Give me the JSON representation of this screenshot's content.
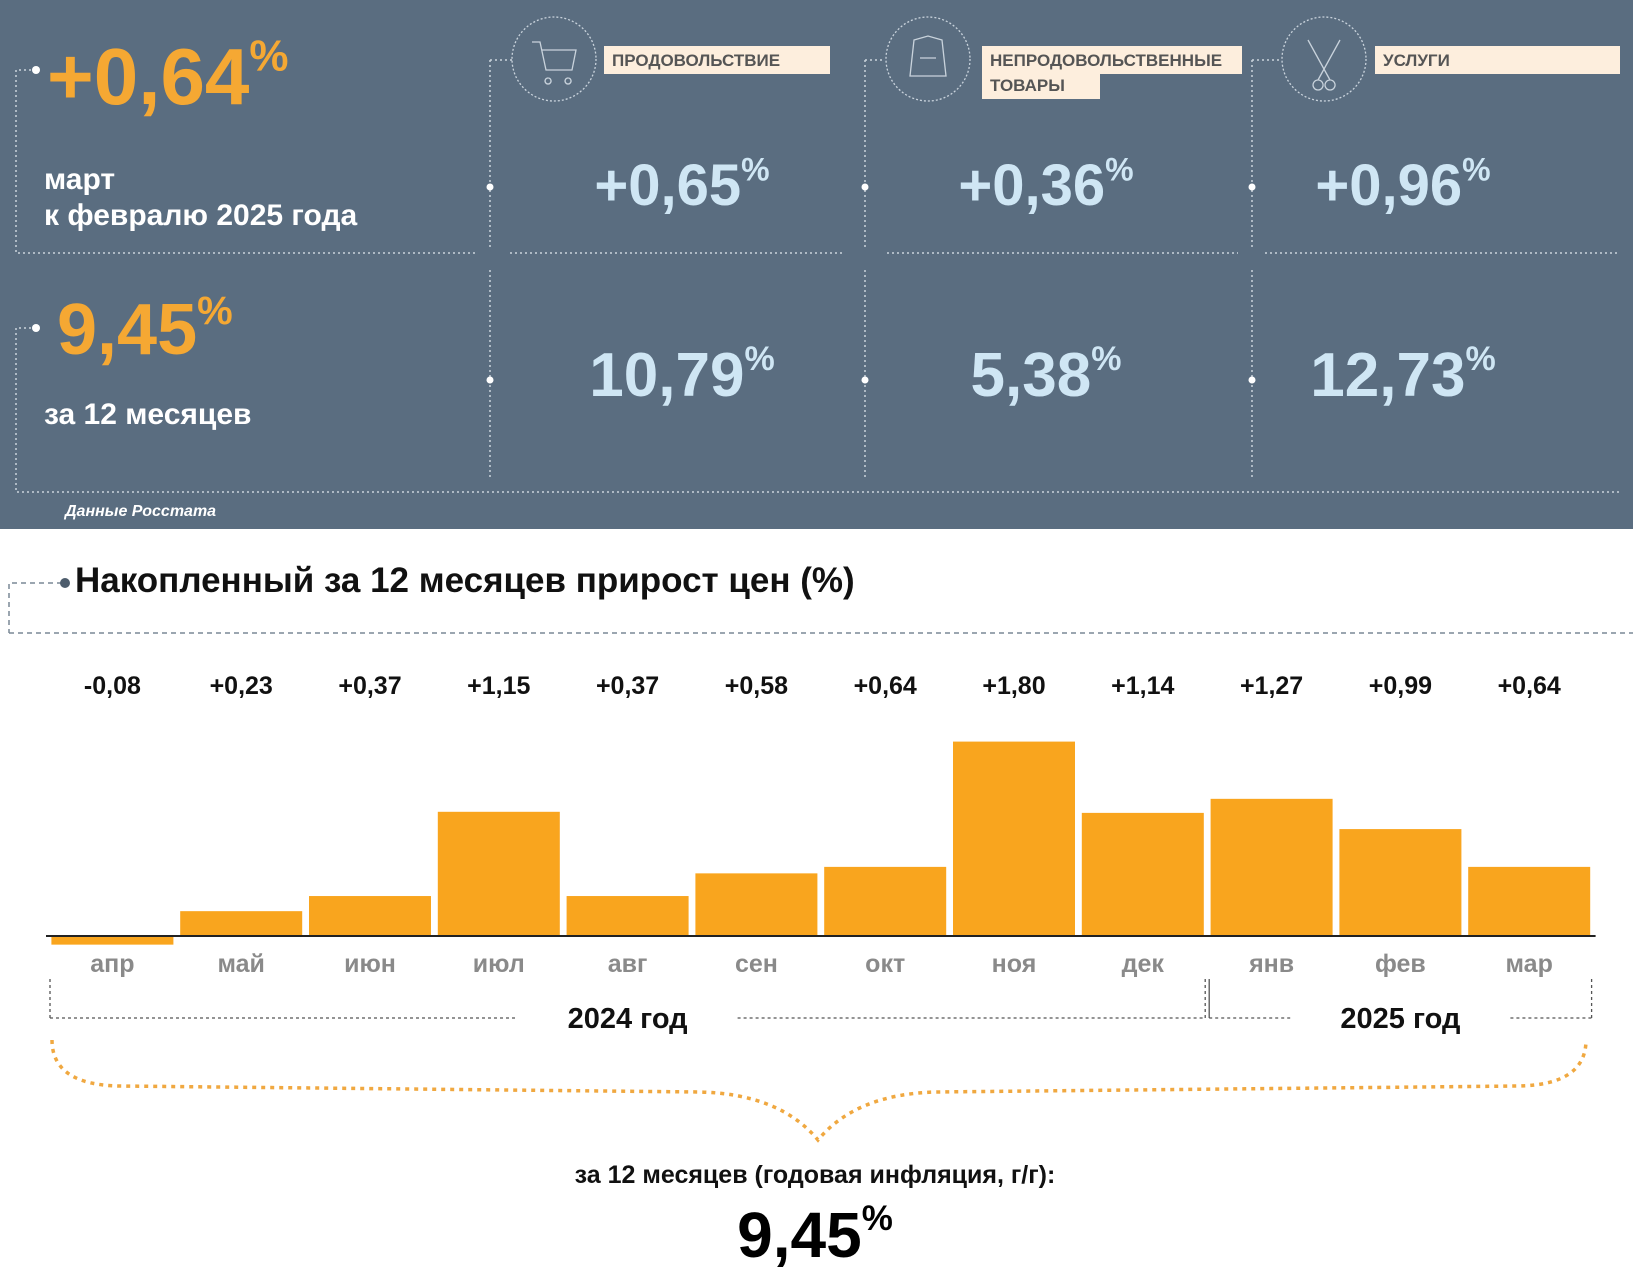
{
  "summary": {
    "monthly": {
      "value": "+0,64",
      "unit": "%",
      "label_lines": [
        "март",
        "к февралю 2025 года"
      ]
    },
    "annual": {
      "value": "9,45",
      "unit": "%",
      "label": "за 12 месяцев"
    },
    "source": "Данные Росстата",
    "groups": [
      {
        "title_lines": [
          "ПРОДОВОЛЬСТВИЕ"
        ],
        "monthly": {
          "value": "+0,65",
          "unit": "%"
        },
        "annual": {
          "value": "10,79",
          "unit": "%"
        }
      },
      {
        "title_lines": [
          "НЕПРОДОВОЛЬСТВЕННЫЕ",
          "ТОВАРЫ"
        ],
        "monthly": {
          "value": "+0,36",
          "unit": "%"
        },
        "annual": {
          "value": "5,38",
          "unit": "%"
        }
      },
      {
        "title_lines": [
          "УСЛУГИ"
        ],
        "monthly": {
          "value": "+0,96",
          "unit": "%"
        },
        "annual": {
          "value": "12,73",
          "unit": "%"
        }
      }
    ]
  },
  "chart_data": {
    "type": "bar",
    "title": "Накопленный за 12 месяцев прирост цен (%)",
    "categories": [
      "апр",
      "май",
      "июн",
      "июл",
      "авг",
      "сен",
      "окт",
      "ноя",
      "дек",
      "янв",
      "фев",
      "мар"
    ],
    "values": [
      -0.08,
      0.23,
      0.37,
      1.15,
      0.37,
      0.58,
      0.64,
      1.8,
      1.14,
      1.27,
      0.99,
      0.64
    ],
    "value_labels": [
      "-0,08",
      "+0,23",
      "+0,37",
      "+1,15",
      "+0,37",
      "+0,58",
      "+0,64",
      "+1,80",
      "+1,14",
      "+1,27",
      "+0,99",
      "+0,64"
    ],
    "color": "#f9a51e",
    "year_groups": [
      {
        "label": "2024 год",
        "from": "апр",
        "to": "дек"
      },
      {
        "label": "2025 год",
        "from": "янв",
        "to": "мар"
      }
    ],
    "total": {
      "label": "за 12 месяцев (годовая инфляция, г/г):",
      "value": "9,45",
      "unit": "%"
    }
  }
}
